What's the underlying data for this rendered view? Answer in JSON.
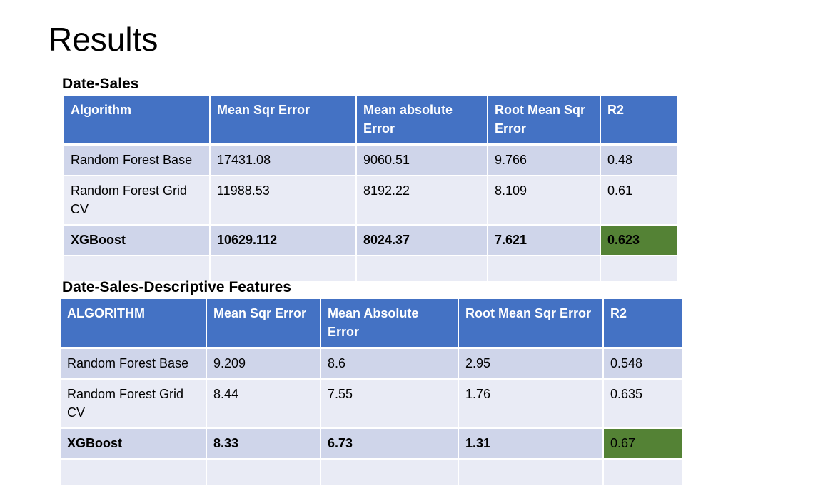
{
  "slide": {
    "title": "Results"
  },
  "tables": [
    {
      "heading": "Date-Sales",
      "columns": [
        "Algorithm",
        "Mean Sqr Error",
        "Mean absolute Error",
        "Root Mean Sqr Error",
        "R2"
      ],
      "rows": [
        [
          "Random Forest Base",
          "17431.08",
          "9060.51",
          "9.766",
          "0.48"
        ],
        [
          "Random Forest Grid CV",
          "11988.53",
          "8192.22",
          "8.109",
          "0.61"
        ],
        [
          "XGBoost",
          "10629.112",
          "8024.37",
          "7.621",
          "0.623"
        ],
        [
          "",
          "",
          "",
          "",
          ""
        ]
      ]
    },
    {
      "heading": "Date-Sales-Descriptive Features",
      "columns": [
        "ALGORITHM",
        "Mean Sqr Error",
        "Mean Absolute Error",
        "Root Mean Sqr Error",
        "R2"
      ],
      "rows": [
        [
          "Random Forest Base",
          "9.209",
          "8.6",
          "2.95",
          "0.548"
        ],
        [
          "Random Forest Grid CV",
          "8.44",
          "7.55",
          "1.76",
          "0.635"
        ],
        [
          "XGBoost",
          "8.33",
          "6.73",
          "1.31",
          "0.67"
        ],
        [
          "",
          "",
          "",
          "",
          ""
        ]
      ]
    }
  ],
  "colors": {
    "header": "#4472c4",
    "row_band_dark": "#cfd5ea",
    "row_band_light": "#e9ebf5",
    "best_highlight": "#548235"
  }
}
